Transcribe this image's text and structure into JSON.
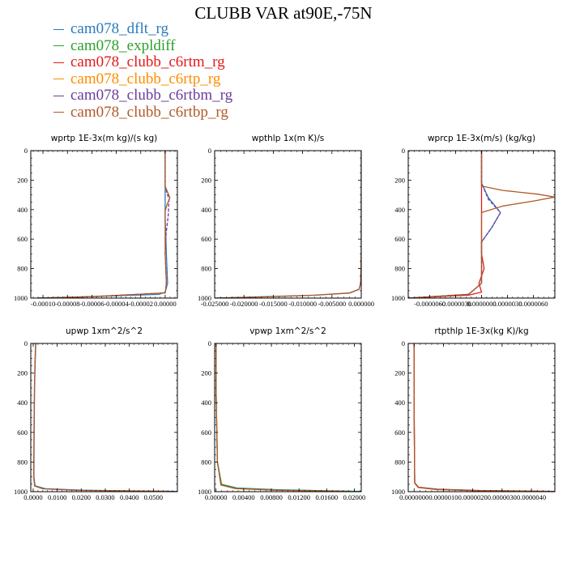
{
  "title": "CLUBB VAR at90E,-75N",
  "legend": [
    {
      "name": "cam078_dflt_rg",
      "color": "#2b7bba"
    },
    {
      "name": "cam078_expldiff",
      "color": "#2ca02c"
    },
    {
      "name": "cam078_clubb_c6rtm_rg",
      "color": "#e31a1c"
    },
    {
      "name": "cam078_clubb_c6rtp_rg",
      "color": "#ff8c00"
    },
    {
      "name": "cam078_clubb_c6rtbm_rg",
      "color": "#6a3d9a"
    },
    {
      "name": "cam078_clubb_c6rtbp_rg",
      "color": "#b15928"
    }
  ],
  "chart_data": [
    {
      "type": "line",
      "title": "wprtp  1E-3x(m kg)/(s kg)",
      "xlim": [
        -0.00011,
        1e-05
      ],
      "ylim": [
        1000,
        0
      ],
      "xticks": [
        "-0.00010",
        "-0.00008",
        "-0.00006",
        "-0.00004",
        "-0.00002",
        "0.00000"
      ],
      "xtick_values": [
        -0.0001,
        -8e-05,
        -6e-05,
        -4e-05,
        -2e-05,
        0.0
      ],
      "yticks": [
        "0",
        "200",
        "400",
        "600",
        "800",
        "1000"
      ],
      "ytick_values": [
        0,
        200,
        400,
        600,
        800,
        1000
      ],
      "series": [
        {
          "color_index": 0,
          "x": [
            0,
            0,
            0,
            1e-06,
            2e-06,
            0,
            -5e-06,
            -6e-05,
            -0.000105
          ],
          "y": [
            0,
            200,
            450,
            700,
            900,
            960,
            975,
            990,
            1000
          ]
        },
        {
          "color_index": 4,
          "x": [
            0,
            0,
            1.2e-06,
            3.2e-06,
            2.5e-06,
            8e-07,
            0,
            1e-06,
            0,
            -6e-05,
            -0.000105
          ],
          "y": [
            0,
            240,
            280,
            330,
            440,
            560,
            700,
            900,
            965,
            990,
            1000
          ]
        },
        {
          "color_index": 5,
          "x": [
            0,
            0,
            1.4e-06,
            3.9e-06,
            1.8e-06,
            0,
            0,
            1e-06,
            0,
            -6e-05,
            -0.000105
          ],
          "y": [
            0,
            240,
            270,
            320,
            360,
            410,
            700,
            900,
            965,
            990,
            1000
          ]
        }
      ]
    },
    {
      "type": "line",
      "title": "wpthlp  1x(m K)/s",
      "xlim": [
        -0.025,
        0.0
      ],
      "ylim": [
        1000,
        0
      ],
      "xticks": [
        "-0.025000",
        "-0.020000",
        "-0.015000",
        "-0.010000",
        "-0.005000",
        "0.000000"
      ],
      "xtick_values": [
        -0.025,
        -0.02,
        -0.015,
        -0.01,
        -0.005,
        0.0
      ],
      "yticks": [
        "0",
        "200",
        "400",
        "600",
        "800",
        "1000"
      ],
      "ytick_values": [
        0,
        200,
        400,
        600,
        800,
        1000
      ],
      "series": [
        {
          "color_index": 0,
          "x": [
            0,
            0,
            0,
            -0.0001,
            -0.0004,
            -0.002,
            -0.008,
            -0.016,
            -0.025
          ],
          "y": [
            0,
            300,
            700,
            900,
            940,
            965,
            980,
            990,
            1000
          ]
        },
        {
          "color_index": 5,
          "x": [
            0,
            0,
            0,
            -0.0001,
            -0.0004,
            -0.002,
            -0.008,
            -0.016,
            -0.025
          ],
          "y": [
            0,
            300,
            700,
            900,
            942,
            966,
            981,
            991,
            1000
          ]
        }
      ]
    },
    {
      "type": "line",
      "title": "wprcp  1E-3x(m/s) (kg/kg)",
      "xlim": [
        -8.5e-06,
        8.5e-06
      ],
      "ylim": [
        1000,
        0
      ],
      "xticks": [
        "-0.0000060",
        "-0.0000030",
        "0.0000000",
        "0.0000030",
        "0.0000060"
      ],
      "xtick_values": [
        -6e-06,
        -3e-06,
        0.0,
        3e-06,
        6e-06
      ],
      "yticks": [
        "0",
        "200",
        "400",
        "600",
        "800",
        "1000"
      ],
      "ytick_values": [
        0,
        200,
        400,
        600,
        800,
        1000
      ],
      "series": [
        {
          "color_index": 0,
          "x": [
            0,
            0,
            8e-07,
            2.2e-06,
            1.2e-06,
            0,
            0,
            -1.5e-06,
            -8.5e-06
          ],
          "y": [
            0,
            220,
            320,
            420,
            520,
            620,
            900,
            975,
            1000
          ]
        },
        {
          "color_index": 2,
          "x": [
            0,
            0,
            0,
            3e-07,
            0,
            -3e-07,
            0,
            -1.5e-06,
            -8.5e-06
          ],
          "y": [
            0,
            300,
            700,
            800,
            850,
            900,
            960,
            980,
            1000
          ]
        },
        {
          "color_index": 4,
          "x": [
            0,
            0,
            8e-07,
            2.2e-06,
            1.2e-06,
            0,
            0,
            -1.5e-06,
            -8.5e-06
          ],
          "y": [
            0,
            220,
            330,
            420,
            520,
            620,
            900,
            975,
            1000
          ]
        },
        {
          "color_index": 5,
          "x": [
            0,
            0,
            2.5e-06,
            6.5e-06,
            8.5e-06,
            6.2e-06,
            2.5e-06,
            0,
            0,
            -1.5e-06,
            -8.5e-06
          ],
          "y": [
            0,
            240,
            270,
            295,
            315,
            340,
            375,
            420,
            900,
            975,
            1000
          ]
        }
      ]
    },
    {
      "type": "line",
      "title": "upwp  1xm^2/s^2",
      "xlim": [
        -0.001,
        0.06
      ],
      "ylim": [
        1000,
        0
      ],
      "xticks": [
        "0.0000",
        "0.0100",
        "0.0200",
        "0.0300",
        "0.0400",
        "0.0500"
      ],
      "xtick_values": [
        0.0,
        0.01,
        0.02,
        0.03,
        0.04,
        0.05
      ],
      "yticks": [
        "0",
        "200",
        "400",
        "600",
        "800",
        "1000"
      ],
      "ytick_values": [
        0,
        200,
        400,
        600,
        800,
        1000
      ],
      "series": [
        {
          "color_index": 0,
          "x": [
            0.0011,
            0.0009,
            0.0006,
            0.0004,
            0.0003,
            0.0008,
            0.005,
            0.02,
            0.06
          ],
          "y": [
            0,
            100,
            300,
            600,
            900,
            960,
            980,
            990,
            998
          ]
        },
        {
          "color_index": 5,
          "x": [
            0.001,
            0.0008,
            0.0005,
            0.0003,
            0.0002,
            0.0006,
            0.004,
            0.018,
            0.058
          ],
          "y": [
            0,
            100,
            300,
            600,
            900,
            962,
            981,
            991,
            998
          ]
        }
      ]
    },
    {
      "type": "line",
      "title": "vpwp  1xm^2/s^2",
      "xlim": [
        -0.0002,
        0.021
      ],
      "ylim": [
        1000,
        0
      ],
      "xticks": [
        "0.00000",
        "0.00400",
        "0.00800",
        "0.01200",
        "0.01600",
        "0.02000"
      ],
      "xtick_values": [
        0.0,
        0.004,
        0.008,
        0.012,
        0.016,
        0.02
      ],
      "yticks": [
        "0",
        "200",
        "400",
        "600",
        "800",
        "1000"
      ],
      "ytick_values": [
        0,
        200,
        400,
        600,
        800,
        1000
      ],
      "series": [
        {
          "color_index": 0,
          "x": [
            0,
            0,
            0.0002,
            0.0008,
            0.003,
            0.009,
            0.016,
            0.021
          ],
          "y": [
            0,
            300,
            800,
            950,
            975,
            987,
            994,
            998
          ]
        },
        {
          "color_index": 1,
          "x": [
            0,
            0,
            0.0002,
            0.0008,
            0.003,
            0.009,
            0.016,
            0.021
          ],
          "y": [
            0,
            300,
            800,
            952,
            977,
            989,
            995,
            999
          ]
        },
        {
          "color_index": 5,
          "x": [
            0,
            0,
            0.0002,
            0.0007,
            0.0028,
            0.0085,
            0.015,
            0.019
          ],
          "y": [
            0,
            300,
            800,
            955,
            979,
            990,
            995,
            998
          ]
        }
      ]
    },
    {
      "type": "line",
      "title": "rtpthlp  1E-3x(kg K)/kg",
      "xlim": [
        -2e-07,
        4.8e-06
      ],
      "ylim": [
        1000,
        0
      ],
      "xticks": [
        "0.0000000",
        "0.0000010",
        "0.0000020",
        "0.0000030",
        "0.0000040"
      ],
      "xtick_values": [
        0.0,
        1e-06,
        2e-06,
        3e-06,
        4e-06
      ],
      "yticks": [
        "0",
        "200",
        "400",
        "600",
        "800",
        "1000"
      ],
      "ytick_values": [
        0,
        200,
        400,
        600,
        800,
        1000
      ],
      "series": [
        {
          "color_index": 0,
          "x": [
            0,
            0,
            2e-08,
            1.5e-07,
            8e-07,
            2.2e-06,
            4.8e-06
          ],
          "y": [
            0,
            400,
            940,
            970,
            983,
            992,
            998
          ]
        },
        {
          "color_index": 2,
          "x": [
            0,
            0,
            2e-08,
            1.5e-07,
            8e-07,
            2.2e-06,
            4.8e-06
          ],
          "y": [
            0,
            400,
            941,
            971,
            984,
            993,
            999
          ]
        },
        {
          "color_index": 5,
          "x": [
            0,
            0,
            2e-08,
            1.4e-07,
            7.5e-07,
            2e-06,
            4.6e-06
          ],
          "y": [
            0,
            400,
            943,
            972,
            985,
            993,
            998
          ]
        }
      ]
    }
  ]
}
